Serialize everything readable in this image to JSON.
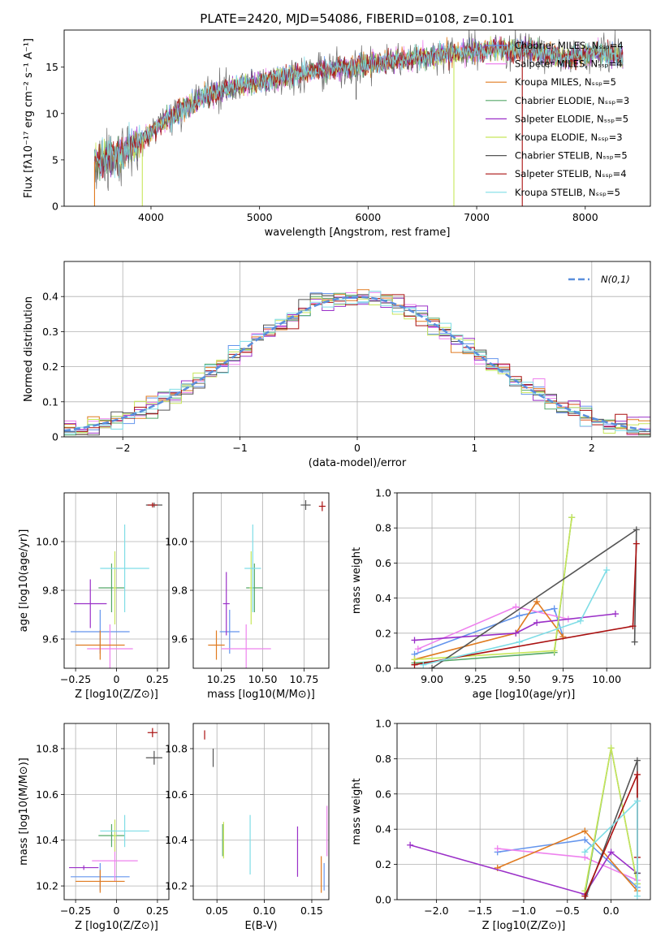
{
  "figure": {
    "title": "PLATE=2420, MJD=54086, FIBERID=0108, z=0.101"
  },
  "colors": {
    "Chabrier MILES": "#6495ed",
    "Salpeter MILES": "#ee82ee",
    "Kroupa MILES": "#e07b20",
    "Chabrier ELODIE": "#55a868",
    "Salpeter ELODIE": "#9b30c8",
    "Kroupa ELODIE": "#c8e65a",
    "Chabrier STELIB": "#555555",
    "Salpeter STELIB": "#aa1111",
    "Kroupa STELIB": "#7fdde6"
  },
  "chart_data": [
    {
      "id": "spectrum",
      "type": "line",
      "xlabel": "wavelength [Angstrom, rest frame]",
      "ylabel": "Flux [fλ10⁻¹⁷ erg cm⁻² s⁻¹ A⁻¹]",
      "xlim": [
        3200,
        8600
      ],
      "ylim": [
        0,
        19
      ],
      "xticks": [
        4000,
        5000,
        6000,
        7000,
        8000
      ],
      "yticks": [
        0,
        5,
        10,
        15
      ],
      "legend_position": "top-right",
      "legend": [
        "Chabrier MILES, N_SSP=4",
        "Salpeter MILES, N_SSP=4",
        "Kroupa MILES, N_SSP=5",
        "Chabrier ELODIE, N_SSP=3",
        "Salpeter ELODIE, N_SSP=5",
        "Kroupa ELODIE, N_SSP=3",
        "Chabrier STELIB, N_SSP=5",
        "Salpeter STELIB, N_SSP=4",
        "Kroupa STELIB, N_SSP=5"
      ],
      "continuum": [
        [
          3480,
          4.8
        ],
        [
          3700,
          5.5
        ],
        [
          3900,
          7
        ],
        [
          4100,
          9
        ],
        [
          4300,
          10.5
        ],
        [
          4500,
          12
        ],
        [
          4800,
          13
        ],
        [
          5000,
          13.4
        ],
        [
          5200,
          14
        ],
        [
          5500,
          14.6
        ],
        [
          5800,
          15
        ],
        [
          6000,
          15.3
        ],
        [
          6300,
          15.8
        ],
        [
          6600,
          16.3
        ],
        [
          6900,
          16.6
        ],
        [
          7200,
          17
        ],
        [
          7500,
          16.8
        ],
        [
          7800,
          16
        ],
        [
          8100,
          16.5
        ],
        [
          8350,
          16.2
        ]
      ],
      "spikes": [
        {
          "x": 3480,
          "y": 0,
          "series": "Kroupa MILES"
        },
        {
          "x": 3920,
          "y": 0,
          "series": "Kroupa ELODIE"
        },
        {
          "x": 6790,
          "y": 0,
          "series": "Kroupa ELODIE"
        },
        {
          "x": 7420,
          "y": 0,
          "series": "Salpeter STELIB"
        },
        {
          "x": 5890,
          "y": 11.5,
          "series": "Chabrier STELIB"
        }
      ]
    },
    {
      "id": "residuals",
      "type": "histogram",
      "xlabel": "(data-model)/error",
      "ylabel": "Normed distribution",
      "xlim": [
        -2.5,
        2.5
      ],
      "ylim": [
        0,
        0.5
      ],
      "xticks": [
        -2,
        -1,
        0,
        1,
        2
      ],
      "yticks": [
        0.0,
        0.1,
        0.2,
        0.3,
        0.4
      ],
      "grid": true,
      "legend_position": "top-right",
      "legend": [
        "N(0,1)"
      ],
      "bin_width": 0.1,
      "bin_start": -2.5,
      "bins": 50,
      "series": [
        "Chabrier MILES",
        "Salpeter MILES",
        "Kroupa MILES",
        "Chabrier ELODIE",
        "Salpeter ELODIE",
        "Kroupa ELODIE",
        "Chabrier STELIB",
        "Salpeter STELIB",
        "Kroupa STELIB"
      ],
      "reference_curve": "normal(0,1)"
    },
    {
      "id": "age-vs-Z",
      "type": "errorbar",
      "xlabel": "Z [log10(Z/Z⊙)]",
      "ylabel": "age  [log10(age/yr)]",
      "xlim": [
        -0.32,
        0.32
      ],
      "ylim": [
        9.48,
        10.2
      ],
      "xticks": [
        -0.25,
        0.0,
        0.25
      ],
      "ytick_values": [
        9.6,
        9.8,
        10.0
      ],
      "ytick_labels": [
        "9.6",
        "9.8",
        "10.0"
      ],
      "grid": true,
      "points": [
        {
          "series": "Chabrier MILES",
          "x": -0.1,
          "xerr": 0.18,
          "y": 9.63,
          "yerr": 0.09
        },
        {
          "series": "Salpeter MILES",
          "x": -0.04,
          "xerr": 0.14,
          "y": 9.56,
          "yerr": 0.1
        },
        {
          "series": "Kroupa MILES",
          "x": -0.1,
          "xerr": 0.15,
          "y": 9.575,
          "yerr": 0.06
        },
        {
          "series": "Chabrier ELODIE",
          "x": -0.03,
          "xerr": 0.08,
          "y": 9.81,
          "yerr": 0.1
        },
        {
          "series": "Salpeter ELODIE",
          "x": -0.16,
          "xerr": 0.1,
          "y": 9.745,
          "yerr": 0.1
        },
        {
          "series": "Kroupa ELODIE",
          "x": -0.01,
          "xerr": 0.01,
          "y": 9.81,
          "yerr": 0.15
        },
        {
          "series": "Chabrier STELIB",
          "x": 0.23,
          "xerr": 0.05,
          "y": 10.15,
          "yerr": 0.01
        },
        {
          "series": "Salpeter STELIB",
          "x": 0.22,
          "xerr": 0.03,
          "y": 10.15,
          "yerr": 0.01
        },
        {
          "series": "Kroupa STELIB",
          "x": 0.05,
          "xerr": 0.15,
          "y": 9.89,
          "yerr": 0.18
        }
      ]
    },
    {
      "id": "age-vs-mass",
      "type": "errorbar",
      "xlabel": "mass [log10(M/M⊙)]",
      "ylabel": "",
      "xlim": [
        10.08,
        10.9
      ],
      "ylim": [
        9.48,
        10.2
      ],
      "xtick_values": [
        10.25,
        10.5,
        10.75
      ],
      "xtick_labels": [
        "10.25",
        "10.50",
        "10.75"
      ],
      "ytick_values": [
        9.6,
        9.8,
        10.0
      ],
      "ytick_labels": [
        "9.6",
        "9.8",
        "10.0"
      ],
      "grid": true,
      "points": [
        {
          "series": "Chabrier MILES",
          "x": 10.3,
          "xerr": 0.06,
          "y": 9.63,
          "yerr": 0.09
        },
        {
          "series": "Salpeter MILES",
          "x": 10.4,
          "xerr": 0.15,
          "y": 9.56,
          "yerr": 0.1
        },
        {
          "series": "Kroupa MILES",
          "x": 10.22,
          "xerr": 0.05,
          "y": 9.575,
          "yerr": 0.06
        },
        {
          "series": "Chabrier ELODIE",
          "x": 10.45,
          "xerr": 0.05,
          "y": 9.81,
          "yerr": 0.1
        },
        {
          "series": "Salpeter ELODIE",
          "x": 10.28,
          "xerr": 0.02,
          "y": 9.745,
          "yerr": 0.13
        },
        {
          "series": "Kroupa ELODIE",
          "x": 10.43,
          "xerr": 0.01,
          "y": 9.81,
          "yerr": 0.15
        },
        {
          "series": "Chabrier STELIB",
          "x": 10.76,
          "xerr": 0.03,
          "y": 10.15,
          "yerr": 0.02
        },
        {
          "series": "Salpeter STELIB",
          "x": 10.86,
          "xerr": 0.02,
          "y": 10.145,
          "yerr": 0.02
        },
        {
          "series": "Kroupa STELIB",
          "x": 10.44,
          "xerr": 0.05,
          "y": 9.89,
          "yerr": 0.18
        }
      ]
    },
    {
      "id": "weight-vs-age",
      "type": "line",
      "xlabel": "age  [log10(age/yr)]",
      "ylabel": "mass weight",
      "xlim": [
        8.8,
        10.25
      ],
      "ylim": [
        0,
        1.0
      ],
      "xtick_values": [
        9.0,
        9.25,
        9.5,
        9.75,
        10.0
      ],
      "xtick_labels": [
        "9.00",
        "9.25",
        "9.50",
        "9.75",
        "10.00"
      ],
      "ytick_values": [
        0.0,
        0.2,
        0.4,
        0.6,
        0.8,
        1.0
      ],
      "ytick_labels": [
        "0.0",
        "0.2",
        "0.4",
        "0.6",
        "0.8",
        "1.0"
      ],
      "grid": true,
      "lines": [
        {
          "series": "Chabrier MILES",
          "x": [
            8.9,
            9.5,
            9.7,
            9.75
          ],
          "y": [
            0.08,
            0.3,
            0.34,
            0.18
          ]
        },
        {
          "series": "Salpeter MILES",
          "x": [
            8.92,
            9.48,
            9.78
          ],
          "y": [
            0.11,
            0.35,
            0.28
          ]
        },
        {
          "series": "Kroupa MILES",
          "x": [
            8.9,
            9.48,
            9.6,
            9.75
          ],
          "y": [
            0.05,
            0.2,
            0.38,
            0.18
          ]
        },
        {
          "series": "Chabrier ELODIE",
          "x": [
            8.9,
            9.7,
            9.8
          ],
          "y": [
            0.03,
            0.09,
            0.86
          ]
        },
        {
          "series": "Salpeter ELODIE",
          "x": [
            8.9,
            9.48,
            9.6,
            10.05
          ],
          "y": [
            0.16,
            0.2,
            0.26,
            0.31
          ]
        },
        {
          "series": "Kroupa ELODIE",
          "x": [
            8.9,
            9.7,
            9.8
          ],
          "y": [
            0.05,
            0.1,
            0.86
          ]
        },
        {
          "series": "Chabrier STELIB",
          "x": [
            9.0,
            10.17,
            10.16
          ],
          "y": [
            0.0,
            0.79,
            0.15
          ]
        },
        {
          "series": "Salpeter STELIB",
          "x": [
            8.9,
            10.15,
            10.17
          ],
          "y": [
            0.02,
            0.24,
            0.71
          ]
        },
        {
          "series": "Kroupa STELIB",
          "x": [
            8.95,
            9.5,
            9.85,
            10.0
          ],
          "y": [
            0.02,
            0.15,
            0.27,
            0.56
          ]
        }
      ]
    },
    {
      "id": "mass-vs-Z",
      "type": "errorbar",
      "xlabel": "Z [log10(Z/Z⊙)]",
      "ylabel": "mass [log10(M/M⊙)]",
      "xlim": [
        -0.32,
        0.32
      ],
      "ylim": [
        10.14,
        10.91
      ],
      "xticks": [
        -0.25,
        0.0,
        0.25
      ],
      "ytick_values": [
        10.2,
        10.4,
        10.6,
        10.8
      ],
      "ytick_labels": [
        "10.2",
        "10.4",
        "10.6",
        "10.8"
      ],
      "grid": true,
      "points": [
        {
          "series": "Chabrier MILES",
          "x": -0.1,
          "xerr": 0.18,
          "y": 10.24,
          "yerr": 0.06
        },
        {
          "series": "Salpeter MILES",
          "x": -0.01,
          "xerr": 0.14,
          "y": 10.31,
          "yerr": 0.09
        },
        {
          "series": "Kroupa MILES",
          "x": -0.1,
          "xerr": 0.15,
          "y": 10.22,
          "yerr": 0.05
        },
        {
          "series": "Chabrier ELODIE",
          "x": -0.03,
          "xerr": 0.08,
          "y": 10.42,
          "yerr": 0.05
        },
        {
          "series": "Salpeter ELODIE",
          "x": -0.2,
          "xerr": 0.09,
          "y": 10.28,
          "yerr": 0.01
        },
        {
          "series": "Kroupa ELODIE",
          "x": -0.01,
          "xerr": 0.01,
          "y": 10.42,
          "yerr": 0.07
        },
        {
          "series": "Chabrier STELIB",
          "x": 0.23,
          "xerr": 0.05,
          "y": 10.76,
          "yerr": 0.03
        },
        {
          "series": "Salpeter STELIB",
          "x": 0.22,
          "xerr": 0.03,
          "y": 10.87,
          "yerr": 0.02
        },
        {
          "series": "Kroupa STELIB",
          "x": 0.05,
          "xerr": 0.15,
          "y": 10.44,
          "yerr": 0.07
        }
      ]
    },
    {
      "id": "mass-vs-EBV",
      "type": "errorbar",
      "xlabel": "E(B-V)",
      "ylabel": "",
      "xlim": [
        0.025,
        0.168
      ],
      "ylim": [
        10.14,
        10.91
      ],
      "xtick_values": [
        0.05,
        0.1,
        0.15
      ],
      "xtick_labels": [
        "0.05",
        "0.10",
        "0.15"
      ],
      "ytick_values": [
        10.2,
        10.4,
        10.6,
        10.8
      ],
      "ytick_labels": [
        "10.2",
        "10.4",
        "10.6",
        "10.8"
      ],
      "grid": true,
      "points": [
        {
          "series": "Chabrier MILES",
          "x": 0.163,
          "y": 10.24,
          "yerr": 0.06
        },
        {
          "series": "Salpeter MILES",
          "x": 0.166,
          "y": 10.44,
          "yerr": 0.11
        },
        {
          "series": "Kroupa MILES",
          "x": 0.16,
          "y": 10.25,
          "yerr": 0.08
        },
        {
          "series": "Chabrier ELODIE",
          "x": 0.056,
          "y": 10.4,
          "yerr": 0.07
        },
        {
          "series": "Salpeter ELODIE",
          "x": 0.135,
          "y": 10.35,
          "yerr": 0.11
        },
        {
          "series": "Kroupa ELODIE",
          "x": 0.057,
          "y": 10.4,
          "yerr": 0.08
        },
        {
          "series": "Chabrier STELIB",
          "x": 0.046,
          "y": 10.76,
          "yerr": 0.04
        },
        {
          "series": "Salpeter STELIB",
          "x": 0.037,
          "y": 10.86,
          "yerr": 0.02
        },
        {
          "series": "Kroupa STELIB",
          "x": 0.085,
          "y": 10.38,
          "yerr": 0.13
        }
      ]
    },
    {
      "id": "weight-vs-Z",
      "type": "line",
      "xlabel": "Z [log10(Z/Z⊙)]",
      "ylabel": "mass weight",
      "xlim": [
        -2.45,
        0.45
      ],
      "ylim": [
        0,
        1.0
      ],
      "xtick_values": [
        -2.0,
        -1.5,
        -1.0,
        -0.5,
        0.0
      ],
      "xtick_labels": [
        "−2.0",
        "−1.5",
        "−1.0",
        "−0.5",
        "0.0"
      ],
      "ytick_values": [
        0.0,
        0.2,
        0.4,
        0.6,
        0.8,
        1.0
      ],
      "ytick_labels": [
        "0.0",
        "0.2",
        "0.4",
        "0.6",
        "0.8",
        "1.0"
      ],
      "grid": true,
      "lines": [
        {
          "series": "Chabrier MILES",
          "x": [
            -1.3,
            -0.3,
            0.3
          ],
          "y": [
            0.27,
            0.34,
            0.07
          ]
        },
        {
          "series": "Salpeter MILES",
          "x": [
            -1.3,
            -0.3,
            0.3
          ],
          "y": [
            0.29,
            0.24,
            0.11
          ]
        },
        {
          "series": "Kroupa MILES",
          "x": [
            -1.3,
            -0.3,
            0.3
          ],
          "y": [
            0.18,
            0.39,
            0.05
          ]
        },
        {
          "series": "Chabrier ELODIE",
          "x": [
            -0.3,
            0.0,
            0.3
          ],
          "y": [
            0.03,
            0.86,
            0.09
          ]
        },
        {
          "series": "Salpeter ELODIE",
          "x": [
            -2.3,
            -0.3,
            0.0,
            0.3
          ],
          "y": [
            0.31,
            0.03,
            0.27,
            0.15
          ]
        },
        {
          "series": "Kroupa ELODIE",
          "x": [
            -0.3,
            0.0,
            0.3
          ],
          "y": [
            0.05,
            0.86,
            0.09
          ]
        },
        {
          "series": "Chabrier STELIB",
          "x": [
            -0.3,
            0.3,
            0.3
          ],
          "y": [
            0.0,
            0.79,
            0.15
          ]
        },
        {
          "series": "Salpeter STELIB",
          "x": [
            -0.3,
            0.3,
            0.3
          ],
          "y": [
            0.02,
            0.71,
            0.24
          ]
        },
        {
          "series": "Kroupa STELIB",
          "x": [
            -0.3,
            0.3,
            0.3
          ],
          "y": [
            0.27,
            0.56,
            0.02
          ]
        }
      ]
    }
  ]
}
